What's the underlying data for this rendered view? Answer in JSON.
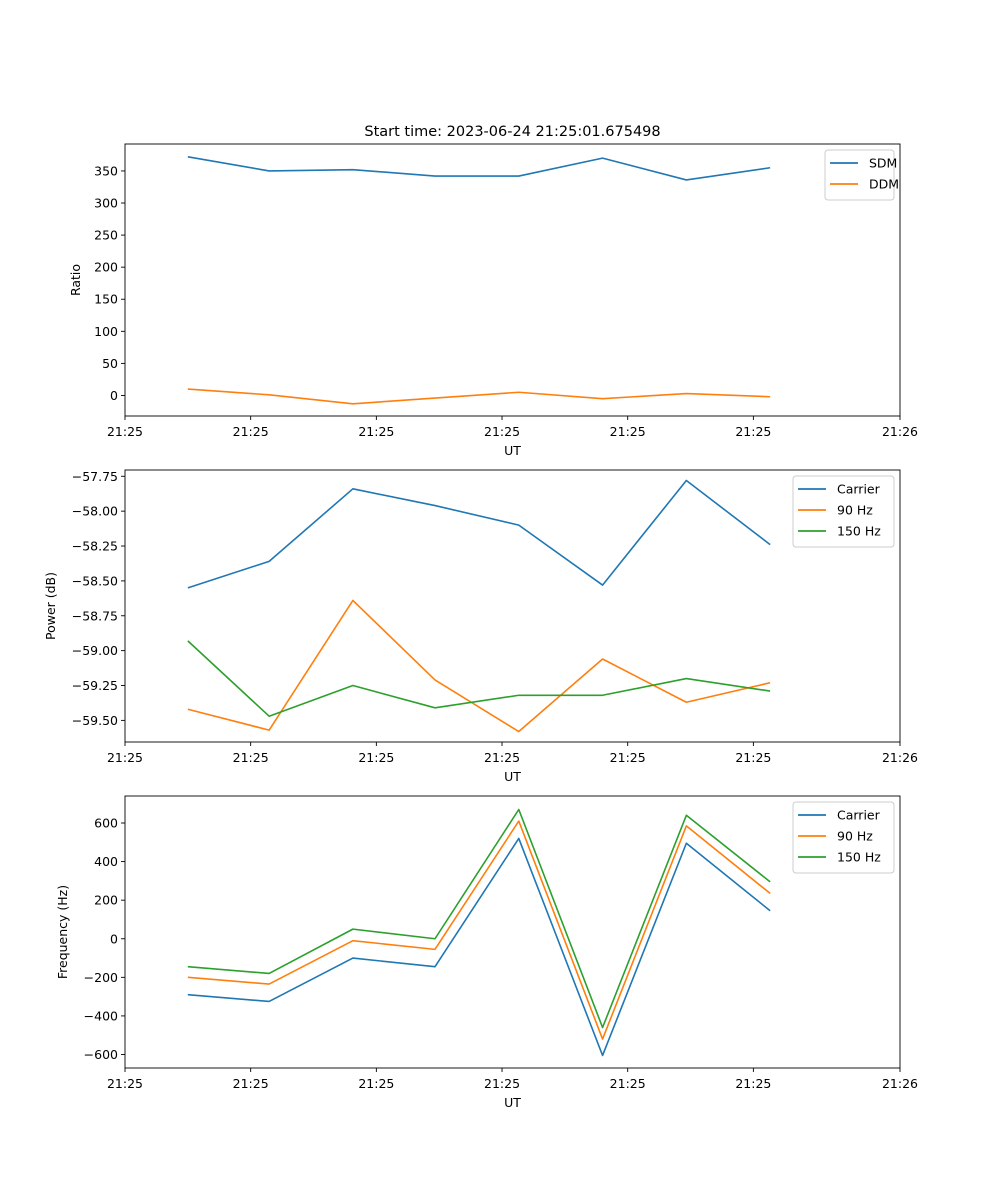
{
  "chart_data": [
    {
      "type": "line",
      "title": "Start time: 2023-06-24 21:25:01.675498",
      "xlabel": "UT",
      "ylabel": "Ratio",
      "xlim": [
        0,
        9.25
      ],
      "ylim": [
        -32,
        392
      ],
      "xticks": [
        0,
        1.5,
        3,
        4.5,
        6,
        7.5,
        9.25
      ],
      "xtick_labels": [
        "21:25",
        "21:25",
        "21:25",
        "21:25",
        "21:25",
        "21:25",
        "21:26"
      ],
      "yticks": [
        0,
        50,
        100,
        150,
        200,
        250,
        300,
        350
      ],
      "ytick_labels": [
        "0",
        "50",
        "100",
        "150",
        "200",
        "250",
        "300",
        "350"
      ],
      "legend": "top-right",
      "grid": false,
      "x": [
        0.75,
        1.72,
        2.72,
        3.7,
        4.7,
        5.7,
        6.7,
        7.7
      ],
      "series": [
        {
          "name": "SDM",
          "color": "#1f77b4",
          "values": [
            372,
            350,
            352,
            342,
            342,
            370,
            336,
            355
          ]
        },
        {
          "name": "DDM",
          "color": "#ff7f0e",
          "values": [
            10,
            1,
            -13,
            -4,
            5,
            -5,
            3,
            -2
          ]
        }
      ]
    },
    {
      "type": "line",
      "title": "",
      "xlabel": "UT",
      "ylabel": "Power (dB)",
      "xlim": [
        0,
        9.25
      ],
      "ylim": [
        -59.655,
        -57.705
      ],
      "xticks": [
        0,
        1.5,
        3,
        4.5,
        6,
        7.5,
        9.25
      ],
      "xtick_labels": [
        "21:25",
        "21:25",
        "21:25",
        "21:25",
        "21:25",
        "21:25",
        "21:26"
      ],
      "yticks": [
        -59.5,
        -59.25,
        -59.0,
        -58.75,
        -58.5,
        -58.25,
        -58.0,
        -57.75
      ],
      "ytick_labels": [
        "−59.50",
        "−59.25",
        "−59.00",
        "−58.75",
        "−58.50",
        "−58.25",
        "−58.00",
        "−57.75"
      ],
      "legend": "top-right",
      "grid": false,
      "x": [
        0.75,
        1.72,
        2.72,
        3.7,
        4.7,
        5.7,
        6.7,
        7.7
      ],
      "series": [
        {
          "name": "Carrier",
          "color": "#1f77b4",
          "values": [
            -58.55,
            -58.36,
            -57.84,
            -57.96,
            -58.1,
            -58.53,
            -57.78,
            -58.24
          ]
        },
        {
          "name": "90 Hz",
          "color": "#ff7f0e",
          "values": [
            -59.42,
            -59.57,
            -58.64,
            -59.21,
            -59.58,
            -59.06,
            -59.37,
            -59.23
          ]
        },
        {
          "name": "150 Hz",
          "color": "#2ca02c",
          "values": [
            -58.93,
            -59.47,
            -59.25,
            -59.41,
            -59.32,
            -59.32,
            -59.2,
            -59.29
          ]
        }
      ]
    },
    {
      "type": "line",
      "title": "",
      "xlabel": "UT",
      "ylabel": "Frequency (Hz)",
      "xlim": [
        0,
        9.25
      ],
      "ylim": [
        -670,
        740
      ],
      "xticks": [
        0,
        1.5,
        3,
        4.5,
        6,
        7.5,
        9.25
      ],
      "xtick_labels": [
        "21:25",
        "21:25",
        "21:25",
        "21:25",
        "21:25",
        "21:25",
        "21:26"
      ],
      "yticks": [
        -600,
        -400,
        -200,
        0,
        200,
        400,
        600
      ],
      "ytick_labels": [
        "−600",
        "−400",
        "−200",
        "0",
        "200",
        "400",
        "600"
      ],
      "legend": "top-right",
      "grid": false,
      "x": [
        0.75,
        1.72,
        2.72,
        3.7,
        4.7,
        5.7,
        6.7,
        7.7
      ],
      "series": [
        {
          "name": "Carrier",
          "color": "#1f77b4",
          "values": [
            -290,
            -325,
            -100,
            -145,
            520,
            -605,
            495,
            145
          ]
        },
        {
          "name": "90 Hz",
          "color": "#ff7f0e",
          "values": [
            -200,
            -235,
            -10,
            -55,
            610,
            -520,
            585,
            235
          ]
        },
        {
          "name": "150 Hz",
          "color": "#2ca02c",
          "values": [
            -145,
            -180,
            50,
            0,
            670,
            -460,
            640,
            295
          ]
        }
      ]
    }
  ]
}
